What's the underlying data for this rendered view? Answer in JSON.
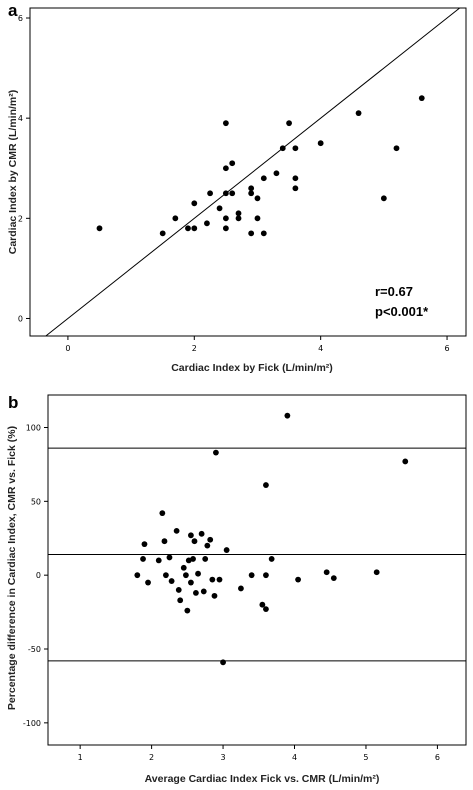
{
  "chart_data": [
    {
      "type": "scatter",
      "panel_label": "a",
      "xlabel": "Cardiac Index by Fick (L/min/m²)",
      "ylabel": "Cardiac Index by CMR (L/min/m²)",
      "xlim": [
        -0.6,
        6.3
      ],
      "ylim": [
        -0.35,
        6.2
      ],
      "xticks": [
        0,
        2,
        4,
        6
      ],
      "yticks": [
        0,
        2,
        4,
        6
      ],
      "identity_line": true,
      "annotations": [
        "r=0.67",
        "p<0.001*"
      ],
      "points": [
        {
          "x": 0.5,
          "y": 1.8
        },
        {
          "x": 1.5,
          "y": 1.7
        },
        {
          "x": 1.7,
          "y": 2.0
        },
        {
          "x": 1.9,
          "y": 1.8
        },
        {
          "x": 2.0,
          "y": 1.8
        },
        {
          "x": 2.0,
          "y": 2.3
        },
        {
          "x": 2.2,
          "y": 1.9
        },
        {
          "x": 2.25,
          "y": 2.5
        },
        {
          "x": 2.4,
          "y": 2.2
        },
        {
          "x": 2.5,
          "y": 1.8
        },
        {
          "x": 2.5,
          "y": 2.0
        },
        {
          "x": 2.5,
          "y": 2.5
        },
        {
          "x": 2.5,
          "y": 3.0
        },
        {
          "x": 2.5,
          "y": 3.9
        },
        {
          "x": 2.6,
          "y": 2.5
        },
        {
          "x": 2.6,
          "y": 3.1
        },
        {
          "x": 2.7,
          "y": 2.0
        },
        {
          "x": 2.7,
          "y": 2.1
        },
        {
          "x": 2.9,
          "y": 1.7
        },
        {
          "x": 2.9,
          "y": 2.5
        },
        {
          "x": 2.9,
          "y": 2.6
        },
        {
          "x": 3.0,
          "y": 2.0
        },
        {
          "x": 3.0,
          "y": 2.4
        },
        {
          "x": 3.1,
          "y": 1.7
        },
        {
          "x": 3.1,
          "y": 2.8
        },
        {
          "x": 3.3,
          "y": 2.9
        },
        {
          "x": 3.4,
          "y": 3.4
        },
        {
          "x": 3.5,
          "y": 3.9
        },
        {
          "x": 3.6,
          "y": 2.6
        },
        {
          "x": 3.6,
          "y": 2.8
        },
        {
          "x": 3.6,
          "y": 3.4
        },
        {
          "x": 4.0,
          "y": 3.5
        },
        {
          "x": 4.6,
          "y": 4.1
        },
        {
          "x": 5.0,
          "y": 2.4
        },
        {
          "x": 5.2,
          "y": 3.4
        },
        {
          "x": 5.6,
          "y": 4.4
        }
      ]
    },
    {
      "type": "scatter",
      "panel_label": "b",
      "xlabel": "Average Cardiac Index Fick vs. CMR (L/min/m²)",
      "ylabel": "Percentage difference in Cardiac Index, CMR vs. Fick (%)",
      "xlim": [
        0.55,
        6.4
      ],
      "ylim": [
        -115,
        122
      ],
      "xticks": [
        1,
        2,
        3,
        4,
        5,
        6
      ],
      "yticks": [
        -100,
        -50,
        0,
        50,
        100
      ],
      "reference_lines": [
        86,
        14,
        -58
      ],
      "points": [
        {
          "x": 1.8,
          "y": 0
        },
        {
          "x": 1.88,
          "y": 11
        },
        {
          "x": 1.9,
          "y": 21
        },
        {
          "x": 1.95,
          "y": -5
        },
        {
          "x": 2.1,
          "y": 10
        },
        {
          "x": 2.15,
          "y": 42
        },
        {
          "x": 2.18,
          "y": 23
        },
        {
          "x": 2.2,
          "y": 0
        },
        {
          "x": 2.25,
          "y": 12
        },
        {
          "x": 2.28,
          "y": -4
        },
        {
          "x": 2.35,
          "y": 30
        },
        {
          "x": 2.38,
          "y": -10
        },
        {
          "x": 2.4,
          "y": -17
        },
        {
          "x": 2.45,
          "y": 5
        },
        {
          "x": 2.48,
          "y": 0
        },
        {
          "x": 2.5,
          "y": -24
        },
        {
          "x": 2.52,
          "y": 10
        },
        {
          "x": 2.55,
          "y": 27
        },
        {
          "x": 2.55,
          "y": -5
        },
        {
          "x": 2.58,
          "y": 11
        },
        {
          "x": 2.6,
          "y": 23
        },
        {
          "x": 2.62,
          "y": -12
        },
        {
          "x": 2.65,
          "y": 1
        },
        {
          "x": 2.7,
          "y": 28
        },
        {
          "x": 2.73,
          "y": -11
        },
        {
          "x": 2.75,
          "y": 11
        },
        {
          "x": 2.78,
          "y": 20
        },
        {
          "x": 2.82,
          "y": 24
        },
        {
          "x": 2.85,
          "y": -3
        },
        {
          "x": 2.88,
          "y": -14
        },
        {
          "x": 2.9,
          "y": 83
        },
        {
          "x": 2.95,
          "y": -3
        },
        {
          "x": 3.0,
          "y": -59
        },
        {
          "x": 3.05,
          "y": 17
        },
        {
          "x": 3.25,
          "y": -9
        },
        {
          "x": 3.4,
          "y": 0
        },
        {
          "x": 3.55,
          "y": -20
        },
        {
          "x": 3.6,
          "y": -23
        },
        {
          "x": 3.6,
          "y": 0
        },
        {
          "x": 3.6,
          "y": 61
        },
        {
          "x": 3.68,
          "y": 11
        },
        {
          "x": 3.9,
          "y": 108
        },
        {
          "x": 4.05,
          "y": -3
        },
        {
          "x": 4.45,
          "y": 2
        },
        {
          "x": 4.55,
          "y": -2
        },
        {
          "x": 5.15,
          "y": 2
        },
        {
          "x": 5.55,
          "y": 77
        }
      ]
    }
  ]
}
